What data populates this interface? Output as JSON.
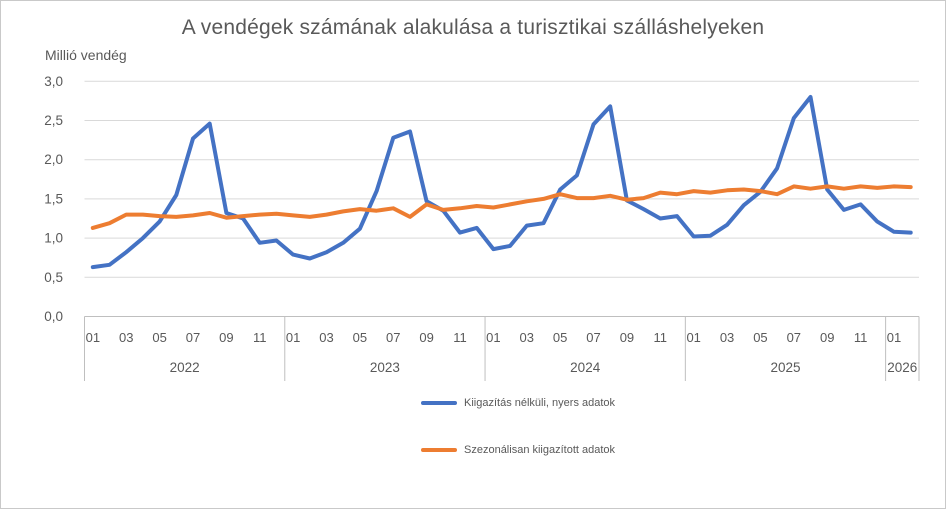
{
  "title": "A vendégek számának alakulása a turisztikai szálláshelyeken",
  "y_axis_title": "Millió vendég",
  "chart_data": {
    "type": "line",
    "title": "A vendégek számának alakulása a turisztikai szálláshelyeken",
    "ylabel": "Millió vendég",
    "xlabel": "",
    "ylim": [
      0,
      3
    ],
    "ytick_step": 0.5,
    "ytick_labels": [
      "0,0",
      "0,5",
      "1,0",
      "1,5",
      "2,0",
      "2,5",
      "3,0"
    ],
    "grid": true,
    "legend_position": "bottom",
    "x_axis": {
      "month_tick_labels": [
        "01",
        "03",
        "05",
        "07",
        "09",
        "11"
      ],
      "years": [
        {
          "label": "2022",
          "months": 12
        },
        {
          "label": "2023",
          "months": 12
        },
        {
          "label": "2024",
          "months": 12
        },
        {
          "label": "2025",
          "months": 12
        },
        {
          "label": "2026",
          "months": 2
        }
      ]
    },
    "x": [
      "2022-01",
      "2022-02",
      "2022-03",
      "2022-04",
      "2022-05",
      "2022-06",
      "2022-07",
      "2022-08",
      "2022-09",
      "2022-10",
      "2022-11",
      "2022-12",
      "2023-01",
      "2023-02",
      "2023-03",
      "2023-04",
      "2023-05",
      "2023-06",
      "2023-07",
      "2023-08",
      "2023-09",
      "2023-10",
      "2023-11",
      "2023-12",
      "2024-01",
      "2024-02",
      "2024-03",
      "2024-04",
      "2024-05",
      "2024-06",
      "2024-07",
      "2024-08",
      "2024-09",
      "2024-10",
      "2024-11",
      "2024-12",
      "2025-01",
      "2025-02",
      "2025-03",
      "2025-04",
      "2025-05",
      "2025-06",
      "2025-07",
      "2025-08",
      "2025-09",
      "2025-10",
      "2025-11",
      "2025-12",
      "2026-01",
      "2026-02"
    ],
    "series": [
      {
        "key": "raw-data-line",
        "name": "Kiigazítás nélküli, nyers adatok",
        "color": "#4472C4",
        "values": [
          0.63,
          0.66,
          0.82,
          1.0,
          1.21,
          1.55,
          2.27,
          2.46,
          1.32,
          1.25,
          0.94,
          0.97,
          0.79,
          0.74,
          0.82,
          0.94,
          1.12,
          1.6,
          2.28,
          2.36,
          1.47,
          1.35,
          1.07,
          1.13,
          0.86,
          0.9,
          1.16,
          1.19,
          1.62,
          1.8,
          2.45,
          2.68,
          1.48,
          1.37,
          1.25,
          1.28,
          1.02,
          1.03,
          1.17,
          1.42,
          1.59,
          1.89,
          2.53,
          2.8,
          1.62,
          1.36,
          1.43,
          1.21,
          1.08,
          1.07
        ]
      },
      {
        "key": "seasonally-adjusted-line",
        "name": "Szezonálisan kiigazított adatok",
        "color": "#ED7D31",
        "values": [
          1.13,
          1.19,
          1.3,
          1.3,
          1.28,
          1.27,
          1.29,
          1.32,
          1.26,
          1.28,
          1.3,
          1.31,
          1.29,
          1.27,
          1.3,
          1.34,
          1.37,
          1.35,
          1.38,
          1.27,
          1.43,
          1.36,
          1.38,
          1.41,
          1.39,
          1.43,
          1.47,
          1.5,
          1.56,
          1.51,
          1.51,
          1.54,
          1.49,
          1.51,
          1.58,
          1.56,
          1.6,
          1.58,
          1.61,
          1.62,
          1.6,
          1.56,
          1.66,
          1.63,
          1.66,
          1.63,
          1.66,
          1.64,
          1.66,
          1.65
        ]
      }
    ],
    "colors": {
      "grid": "#d9d9d9",
      "axis": "#bfbfbf",
      "text": "#595959"
    }
  }
}
